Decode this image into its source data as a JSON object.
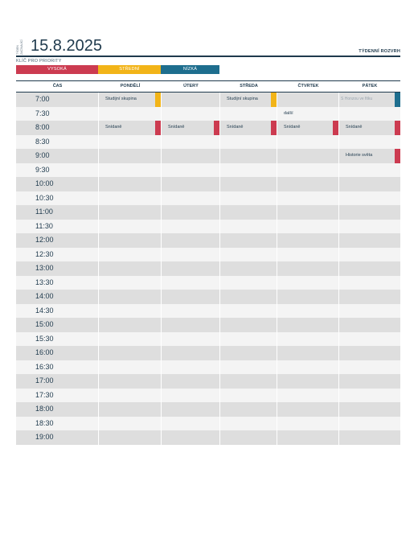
{
  "header": {
    "week_line1": "TÝDEN",
    "week_line2": "ZAČÍNAJÍCÍ",
    "date": "15.8.2025",
    "title": "TÝDENNÍ ROZVRH"
  },
  "priority_key": {
    "label": "KLÍČ PRO PRIORITY",
    "items": [
      {
        "label": "VYSOKÁ",
        "color": "#cc3b50"
      },
      {
        "label": "STŘEDNÍ",
        "color": "#f2b418"
      },
      {
        "label": "NÍZKÁ",
        "color": "#1e6e8e"
      }
    ]
  },
  "columns": [
    "ČAS",
    "PONDĚLÍ",
    "ÚTERÝ",
    "STŘEDA",
    "ČTVRTEK",
    "PÁTEK"
  ],
  "times": [
    "7:00",
    "7:30",
    "8:00",
    "8:30",
    "9:00",
    "9:30",
    "10:00",
    "10:30",
    "11:00",
    "11:30",
    "12:00",
    "12:30",
    "13:00",
    "13:30",
    "14:00",
    "14:30",
    "15:00",
    "15:30",
    "16:00",
    "16:30",
    "17:00",
    "17:30",
    "18:00",
    "18:30",
    "19:00"
  ],
  "events": [
    {
      "row": 0,
      "day": 0,
      "text": "Studijní skupina",
      "priority": "střední",
      "color": "#f2b418"
    },
    {
      "row": 0,
      "day": 2,
      "text": "Studijní skupina",
      "priority": "střední",
      "color": "#f2b418"
    },
    {
      "row": 0,
      "day": 4,
      "text": "S Honzou ve fitku",
      "priority": "nízká",
      "color": "#1e6e8e",
      "faint": true
    },
    {
      "row": 1,
      "day": 3,
      "text": "další",
      "priority": "",
      "color": ""
    },
    {
      "row": 2,
      "day": 0,
      "text": "Snídaně",
      "priority": "vysoká",
      "color": "#cc3b50"
    },
    {
      "row": 2,
      "day": 1,
      "text": "Snídaně",
      "priority": "vysoká",
      "color": "#cc3b50"
    },
    {
      "row": 2,
      "day": 2,
      "text": "Snídaně",
      "priority": "vysoká",
      "color": "#cc3b50"
    },
    {
      "row": 2,
      "day": 3,
      "text": "Snídaně",
      "priority": "vysoká",
      "color": "#cc3b50"
    },
    {
      "row": 2,
      "day": 4,
      "text": "Snídaně",
      "priority": "vysoká",
      "color": "#cc3b50"
    },
    {
      "row": 4,
      "day": 4,
      "text": "Historie světa",
      "priority": "vysoká",
      "color": "#cc3b50"
    }
  ]
}
